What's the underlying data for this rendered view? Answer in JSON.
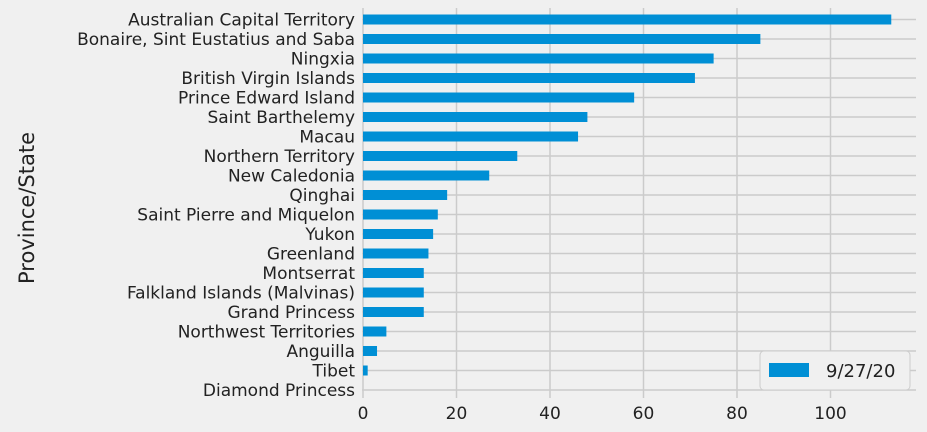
{
  "chart_data": {
    "type": "bar",
    "orientation": "horizontal",
    "ylabel": "Province/State",
    "xlabel": "",
    "xlim": [
      0,
      118
    ],
    "xticks": [
      0,
      20,
      40,
      60,
      80,
      100
    ],
    "grid": true,
    "legend_position": "bottom-right",
    "bar_color": "#008fd5",
    "categories": [
      "Australian Capital Territory",
      "Bonaire, Sint Eustatius and Saba",
      "Ningxia",
      "British Virgin Islands",
      "Prince Edward Island",
      "Saint Barthelemy",
      "Macau",
      "Northern Territory",
      "New Caledonia",
      "Qinghai",
      "Saint Pierre and Miquelon",
      "Yukon",
      "Greenland",
      "Montserrat",
      "Falkland Islands (Malvinas)",
      "Grand Princess",
      "Northwest Territories",
      "Anguilla",
      "Tibet",
      "Diamond Princess"
    ],
    "series": [
      {
        "name": "9/27/20",
        "values": [
          113,
          85,
          75,
          71,
          58,
          48,
          46,
          33,
          27,
          18,
          16,
          15,
          14,
          13,
          13,
          13,
          5,
          3,
          1,
          0
        ]
      }
    ]
  }
}
